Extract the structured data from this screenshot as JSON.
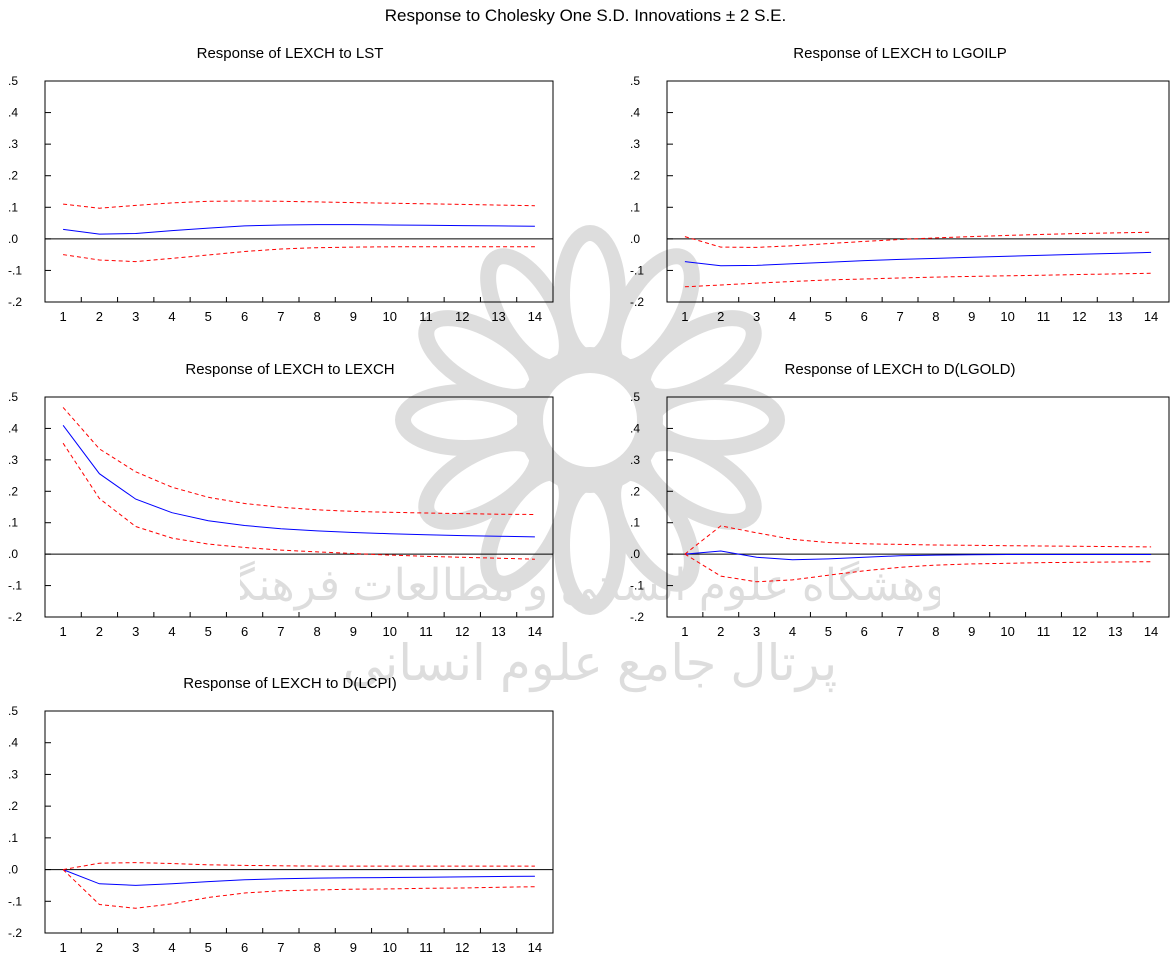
{
  "main_title": "Response to Cholesky One S.D. Innovations ± 2 S.E.",
  "watermark": {
    "line1": "پژوهشگاه علوم انسانی و مطالعات فرهنگی",
    "line2": "پرتال جامع علوم انسانی"
  },
  "colors": {
    "response": "#0000ff",
    "bands": "#ff0000",
    "axis": "#000000",
    "zero_line": "#000000"
  },
  "chart_data": [
    {
      "type": "line",
      "title": "Response of LEXCH to LST",
      "x": [
        1,
        2,
        3,
        4,
        5,
        6,
        7,
        8,
        9,
        10,
        11,
        12,
        13,
        14
      ],
      "y_ticks": [
        ".5",
        ".4",
        ".3",
        ".2",
        ".1",
        ".0",
        "-.1",
        "-.2"
      ],
      "ylim": [
        -0.2,
        0.5
      ],
      "series": [
        {
          "role": "response",
          "values": [
            0.03,
            0.015,
            0.017,
            0.026,
            0.034,
            0.041,
            0.044,
            0.045,
            0.045,
            0.044,
            0.043,
            0.042,
            0.041,
            0.04
          ]
        },
        {
          "role": "upper",
          "values": [
            0.11,
            0.097,
            0.106,
            0.114,
            0.119,
            0.12,
            0.119,
            0.117,
            0.115,
            0.113,
            0.111,
            0.109,
            0.107,
            0.105
          ]
        },
        {
          "role": "lower",
          "values": [
            -0.05,
            -0.067,
            -0.072,
            -0.062,
            -0.051,
            -0.04,
            -0.032,
            -0.028,
            -0.026,
            -0.025,
            -0.025,
            -0.025,
            -0.025,
            -0.025
          ]
        }
      ]
    },
    {
      "type": "line",
      "title": "Response of LEXCH to LGOILP",
      "x": [
        1,
        2,
        3,
        4,
        5,
        6,
        7,
        8,
        9,
        10,
        11,
        12,
        13,
        14
      ],
      "y_ticks": [
        ".5",
        ".4",
        ".3",
        ".2",
        ".1",
        ".0",
        "-.1",
        "-.2"
      ],
      "ylim": [
        -0.2,
        0.5
      ],
      "series": [
        {
          "role": "response",
          "values": [
            -0.072,
            -0.085,
            -0.084,
            -0.079,
            -0.074,
            -0.069,
            -0.065,
            -0.062,
            -0.058,
            -0.055,
            -0.052,
            -0.049,
            -0.046,
            -0.043
          ]
        },
        {
          "role": "upper",
          "values": [
            0.007,
            -0.026,
            -0.027,
            -0.022,
            -0.015,
            -0.008,
            -0.002,
            0.003,
            0.007,
            0.011,
            0.014,
            0.017,
            0.019,
            0.021
          ]
        },
        {
          "role": "lower",
          "values": [
            -0.152,
            -0.146,
            -0.14,
            -0.135,
            -0.13,
            -0.127,
            -0.124,
            -0.121,
            -0.119,
            -0.117,
            -0.115,
            -0.113,
            -0.111,
            -0.109
          ]
        }
      ]
    },
    {
      "type": "line",
      "title": "Response of LEXCH to LEXCH",
      "x": [
        1,
        2,
        3,
        4,
        5,
        6,
        7,
        8,
        9,
        10,
        11,
        12,
        13,
        14
      ],
      "y_ticks": [
        ".5",
        ".4",
        ".3",
        ".2",
        ".1",
        ".0",
        "-.1",
        "-.2"
      ],
      "ylim": [
        -0.2,
        0.5
      ],
      "series": [
        {
          "role": "response",
          "values": [
            0.41,
            0.256,
            0.175,
            0.132,
            0.106,
            0.091,
            0.081,
            0.074,
            0.069,
            0.065,
            0.062,
            0.059,
            0.057,
            0.055
          ]
        },
        {
          "role": "upper",
          "values": [
            0.467,
            0.335,
            0.262,
            0.213,
            0.181,
            0.161,
            0.149,
            0.141,
            0.136,
            0.133,
            0.131,
            0.129,
            0.127,
            0.126
          ]
        },
        {
          "role": "lower",
          "values": [
            0.353,
            0.177,
            0.088,
            0.051,
            0.032,
            0.021,
            0.013,
            0.007,
            0.002,
            -0.003,
            -0.007,
            -0.01,
            -0.013,
            -0.016
          ]
        }
      ]
    },
    {
      "type": "line",
      "title": "Response of LEXCH to D(LGOLD)",
      "x": [
        1,
        2,
        3,
        4,
        5,
        6,
        7,
        8,
        9,
        10,
        11,
        12,
        13,
        14
      ],
      "y_ticks": [
        ".5",
        ".4",
        ".3",
        ".2",
        ".1",
        ".0",
        "-.1",
        "-.2"
      ],
      "ylim": [
        -0.2,
        0.5
      ],
      "series": [
        {
          "role": "response",
          "values": [
            0.0,
            0.01,
            -0.01,
            -0.018,
            -0.015,
            -0.01,
            -0.005,
            -0.003,
            -0.002,
            -0.001,
            -0.001,
            -0.001,
            -0.001,
            -0.001
          ]
        },
        {
          "role": "upper",
          "values": [
            0.0,
            0.09,
            0.068,
            0.047,
            0.037,
            0.033,
            0.031,
            0.029,
            0.028,
            0.027,
            0.026,
            0.025,
            0.024,
            0.023
          ]
        },
        {
          "role": "lower",
          "values": [
            0.0,
            -0.07,
            -0.088,
            -0.082,
            -0.067,
            -0.053,
            -0.042,
            -0.035,
            -0.031,
            -0.029,
            -0.027,
            -0.026,
            -0.025,
            -0.024
          ]
        }
      ]
    },
    {
      "type": "line",
      "title": "Response of LEXCH to D(LCPI)",
      "x": [
        1,
        2,
        3,
        4,
        5,
        6,
        7,
        8,
        9,
        10,
        11,
        12,
        13,
        14
      ],
      "y_ticks": [
        ".5",
        ".4",
        ".3",
        ".2",
        ".1",
        ".0",
        "-.1",
        "-.2"
      ],
      "ylim": [
        -0.2,
        0.5
      ],
      "series": [
        {
          "role": "response",
          "values": [
            0.0,
            -0.045,
            -0.05,
            -0.045,
            -0.038,
            -0.032,
            -0.029,
            -0.027,
            -0.026,
            -0.025,
            -0.024,
            -0.023,
            -0.022,
            -0.021
          ]
        },
        {
          "role": "upper",
          "values": [
            0.0,
            0.02,
            0.022,
            0.019,
            0.015,
            0.013,
            0.012,
            0.011,
            0.011,
            0.011,
            0.011,
            0.011,
            0.011,
            0.011
          ]
        },
        {
          "role": "lower",
          "values": [
            0.0,
            -0.11,
            -0.122,
            -0.108,
            -0.088,
            -0.074,
            -0.067,
            -0.064,
            -0.062,
            -0.061,
            -0.059,
            -0.058,
            -0.056,
            -0.054
          ]
        }
      ]
    }
  ]
}
